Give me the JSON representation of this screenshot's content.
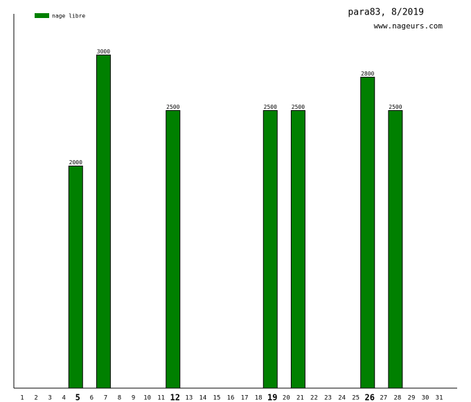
{
  "chart_data": {
    "type": "bar",
    "title": "para83, 8/2019",
    "subtitle": "www.nageurs.com",
    "series": [
      {
        "name": "nage libre",
        "color": "#008000",
        "values": [
          null,
          null,
          null,
          null,
          2000,
          null,
          3000,
          null,
          null,
          null,
          null,
          2500,
          null,
          null,
          null,
          null,
          null,
          null,
          2500,
          null,
          2500,
          null,
          null,
          null,
          null,
          2800,
          null,
          2500,
          null,
          null,
          null
        ]
      }
    ],
    "categories": [
      "1",
      "2",
      "3",
      "4",
      "5",
      "6",
      "7",
      "8",
      "9",
      "10",
      "11",
      "12",
      "13",
      "14",
      "15",
      "16",
      "17",
      "18",
      "19",
      "20",
      "21",
      "22",
      "23",
      "24",
      "25",
      "26",
      "27",
      "28",
      "29",
      "30",
      "31"
    ],
    "bold_categories": [
      4,
      11,
      18,
      25
    ],
    "ylim": [
      0,
      3370
    ],
    "legend": "top-left"
  }
}
